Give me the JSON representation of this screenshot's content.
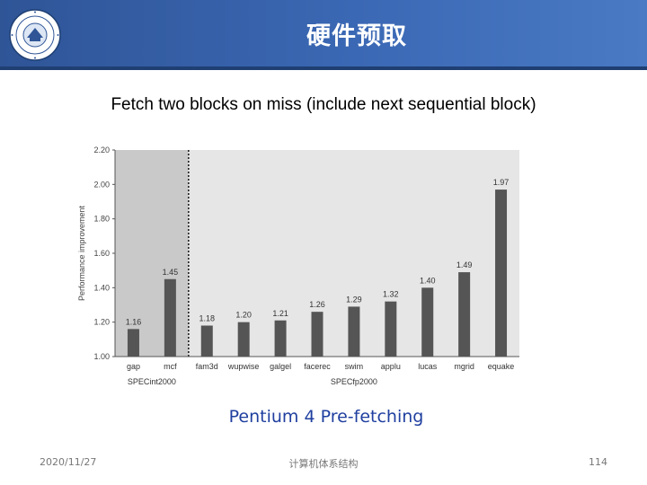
{
  "header": {
    "title": "硬件预取"
  },
  "subtitle": "Fetch two blocks on miss (include next sequential block)",
  "chart_data": {
    "type": "bar",
    "categories": [
      "gap",
      "mcf",
      "fam3d",
      "wupwise",
      "galgel",
      "facerec",
      "swim",
      "applu",
      "lucas",
      "mgrid",
      "equake"
    ],
    "values": [
      1.16,
      1.45,
      1.18,
      1.2,
      1.21,
      1.26,
      1.29,
      1.32,
      1.4,
      1.49,
      1.97
    ],
    "data_labels": [
      "1.16",
      "1.45",
      "1.18",
      "1.20",
      "1.21",
      "1.26",
      "1.29",
      "1.32",
      "1.40",
      "1.49",
      "1.97"
    ],
    "ylabel": "Performance improvement",
    "ylim": [
      1.0,
      2.2
    ],
    "yticks": [
      "1.00",
      "1.20",
      "1.40",
      "1.60",
      "1.80",
      "2.00",
      "2.20"
    ],
    "groups": [
      {
        "label": "SPECint2000",
        "count": 2
      },
      {
        "label": "SPECfp2000",
        "count": 9
      }
    ],
    "colors": {
      "bar": "#555555",
      "int_background": "#c9c9c9",
      "fp_background": "#e6e6e6"
    }
  },
  "caption": "Pentium 4 Pre-fetching",
  "footer": {
    "date": "2020/11/27",
    "center": "计算机体系结构",
    "page": "114"
  }
}
